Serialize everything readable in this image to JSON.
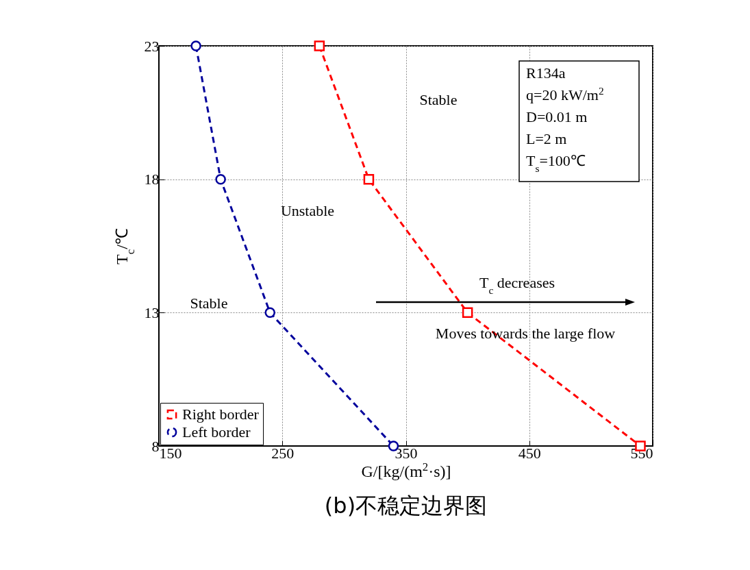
{
  "chart_data": {
    "type": "line",
    "title": "(b)不稳定边界图",
    "xlabel": "G/[kg/(m$^{2}$·s)]",
    "ylabel": "T$_{c}$/℃",
    "xlim": [
      150,
      550
    ],
    "xticks": [
      150,
      250,
      350,
      450,
      550
    ],
    "ylim": [
      8,
      23
    ],
    "yticks": [
      8,
      13,
      18,
      23
    ],
    "grid": true,
    "legend": "bottom left",
    "line_style": "dashed",
    "series": [
      {
        "name": "Right border",
        "color": "#ff0000",
        "marker": "square",
        "x": [
          280,
          320,
          400,
          540
        ],
        "values": [
          23,
          18,
          13,
          8
        ]
      },
      {
        "name": "Left border",
        "color": "#00009c",
        "marker": "circle",
        "x": [
          180,
          200,
          240,
          340
        ],
        "values": [
          23,
          18,
          13,
          8
        ]
      }
    ],
    "annotations": [
      "Stable",
      "Unstable",
      "Stable",
      "T$_{c}$ decreases",
      "Moves towards the large flow",
      "R134a",
      "q=20 kW/m$^{2}$",
      "D=0.01 m",
      "L=2 m",
      "T$_{s}$=100℃"
    ]
  }
}
